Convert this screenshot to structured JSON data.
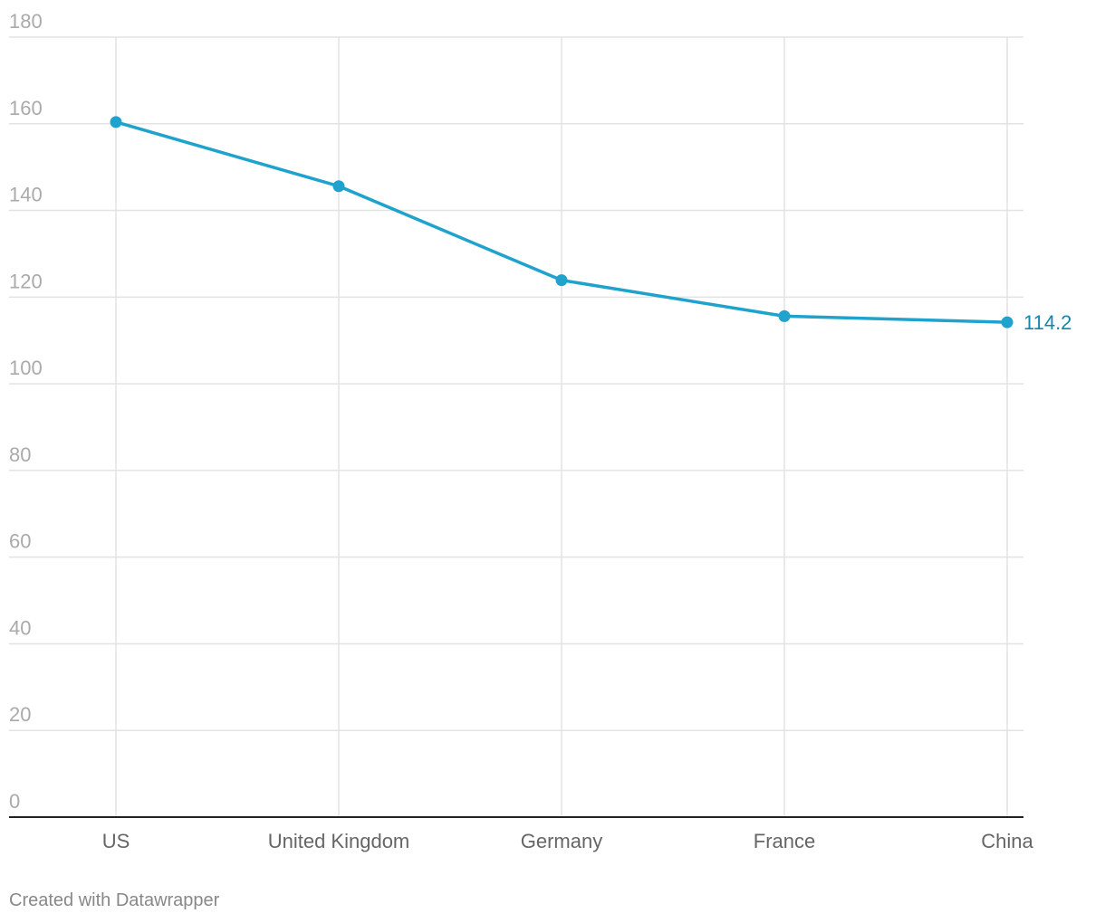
{
  "colors": {
    "series": "#1fa2cc",
    "value_label": "#1486ad"
  },
  "chart_data": {
    "type": "line",
    "categories": [
      "US",
      "United Kingdom",
      "Germany",
      "France",
      "China"
    ],
    "series": [
      {
        "values": [
          160.4,
          145.6,
          123.9,
          115.6,
          114.2
        ]
      }
    ],
    "ylim": [
      0,
      180
    ],
    "yticks": [
      "0",
      "20",
      "40",
      "60",
      "80",
      "100",
      "120",
      "140",
      "160",
      "180"
    ],
    "grid": true,
    "annotations": [
      {
        "category": "China",
        "text": "114.2"
      }
    ]
  },
  "footer": {
    "credit": "Created with Datawrapper"
  }
}
